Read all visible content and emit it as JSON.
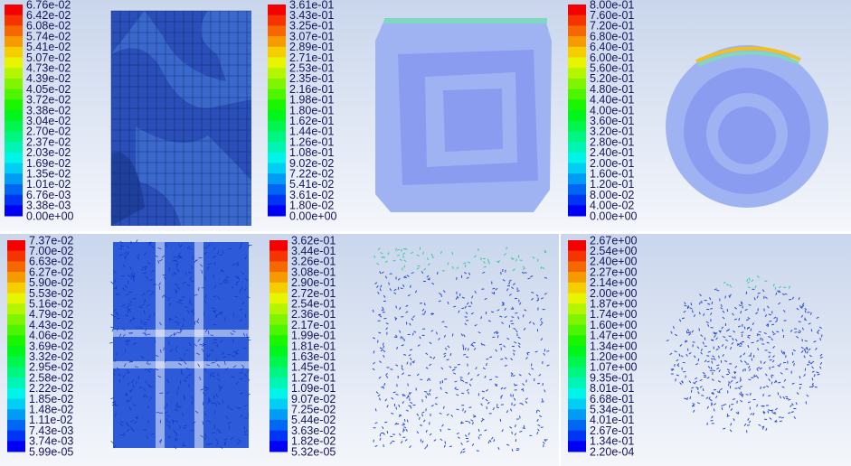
{
  "panels": [
    {
      "legend": [
        "6.76e-02",
        "6.42e-02",
        "6.08e-02",
        "5.74e-02",
        "5.41e-02",
        "5.07e-02",
        "4.73e-02",
        "4.39e-02",
        "4.05e-02",
        "3.72e-02",
        "3.38e-02",
        "3.04e-02",
        "2.70e-02",
        "2.37e-02",
        "2.03e-02",
        "1.69e-02",
        "1.35e-02",
        "1.01e-02",
        "6.76e-03",
        "3.38e-03",
        "0.00e+00"
      ]
    },
    {
      "legend": [
        "3.61e-01",
        "3.43e-01",
        "3.25e-01",
        "3.07e-01",
        "2.89e-01",
        "2.71e-01",
        "2.53e-01",
        "2.35e-01",
        "2.16e-01",
        "1.98e-01",
        "1.80e-01",
        "1.62e-01",
        "1.44e-01",
        "1.26e-01",
        "1.08e-01",
        "9.02e-02",
        "7.22e-02",
        "5.41e-02",
        "3.61e-02",
        "1.80e-02",
        "0.00e+00"
      ]
    },
    {
      "legend": [
        "8.00e-01",
        "7.60e-01",
        "7.20e-01",
        "6.80e-01",
        "6.40e-01",
        "6.00e-01",
        "5.60e-01",
        "5.20e-01",
        "4.80e-01",
        "4.40e-01",
        "4.00e-01",
        "3.60e-01",
        "3.20e-01",
        "2.80e-01",
        "2.40e-01",
        "2.00e-01",
        "1.60e-01",
        "1.20e-01",
        "8.00e-02",
        "4.00e-02",
        "0.00e+00"
      ]
    },
    {
      "legend": [
        "7.37e-02",
        "7.00e-02",
        "6.63e-02",
        "6.27e-02",
        "5.90e-02",
        "5.53e-02",
        "5.16e-02",
        "4.79e-02",
        "4.43e-02",
        "4.06e-02",
        "3.69e-02",
        "3.32e-02",
        "2.95e-02",
        "2.58e-02",
        "2.22e-02",
        "1.85e-02",
        "1.48e-02",
        "1.11e-02",
        "7.43e-03",
        "3.74e-03",
        "5.99e-05"
      ]
    },
    {
      "legend": [
        "3.62e-01",
        "3.44e-01",
        "3.26e-01",
        "3.08e-01",
        "2.90e-01",
        "2.72e-01",
        "2.54e-01",
        "2.36e-01",
        "2.17e-01",
        "1.99e-01",
        "1.81e-01",
        "1.63e-01",
        "1.45e-01",
        "1.27e-01",
        "1.09e-01",
        "9.07e-02",
        "7.25e-02",
        "5.44e-02",
        "3.63e-02",
        "1.82e-02",
        "5.32e-05"
      ]
    },
    {
      "legend": [
        "2.67e+00",
        "2.54e+00",
        "2.40e+00",
        "2.27e+00",
        "2.14e+00",
        "2.00e+00",
        "1.87e+00",
        "1.74e+00",
        "1.60e+00",
        "1.47e+00",
        "1.34e+00",
        "1.20e+00",
        "1.07e+00",
        "9.35e-01",
        "8.01e-01",
        "6.68e-01",
        "5.34e-01",
        "4.01e-01",
        "2.67e-01",
        "1.34e-01",
        "2.20e-04"
      ]
    }
  ]
}
